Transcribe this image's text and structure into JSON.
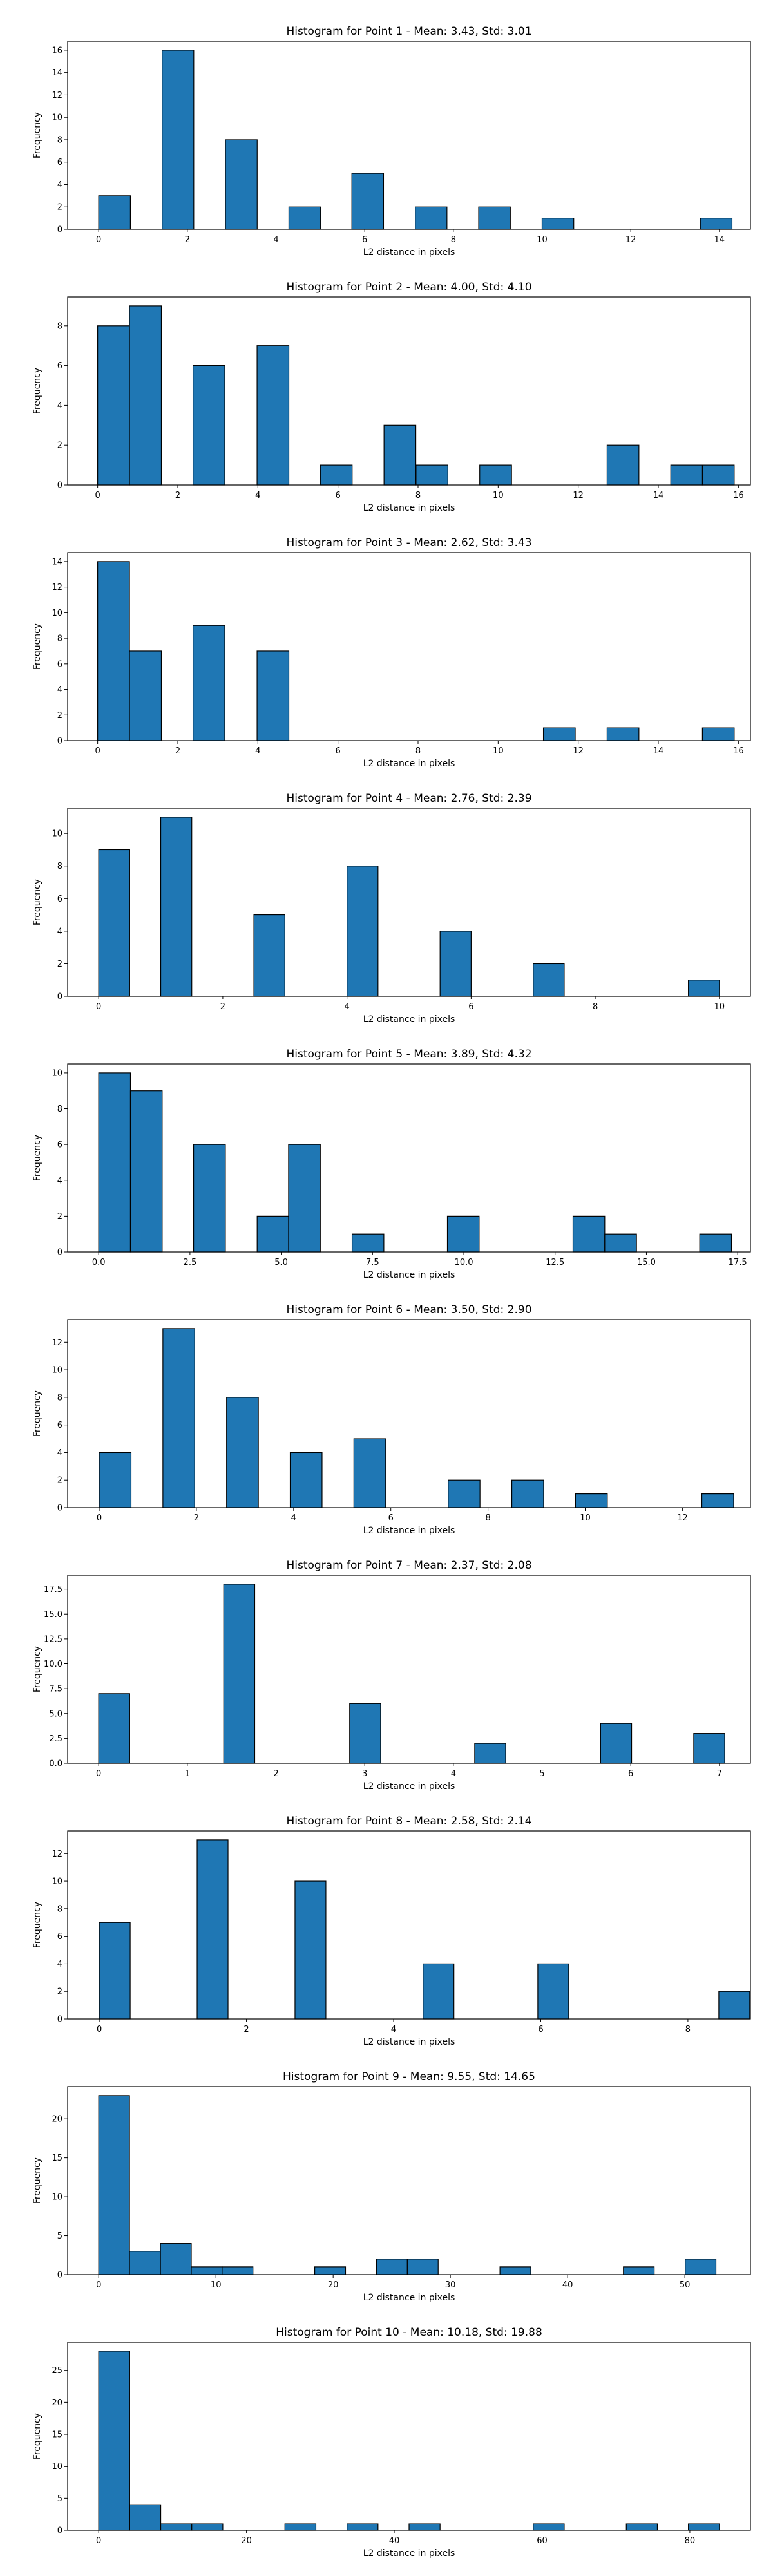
{
  "chart_data": [
    {
      "type": "bar",
      "title": "Histogram for Point 1 - Mean: 3.43, Std: 3.01",
      "xlabel": "L2 distance in pixels",
      "ylabel": "Frequency",
      "xlim": [
        -0.7,
        14.7
      ],
      "ylim": [
        0,
        16.8
      ],
      "xticks": [
        0,
        2,
        4,
        6,
        8,
        10,
        12,
        14
      ],
      "yticks": [
        0,
        2,
        4,
        6,
        8,
        10,
        12,
        14,
        16
      ],
      "bin_width": 0.715,
      "bins": [
        {
          "x": 0.0,
          "count": 3
        },
        {
          "x": 1.43,
          "count": 16
        },
        {
          "x": 2.86,
          "count": 8
        },
        {
          "x": 4.29,
          "count": 2
        },
        {
          "x": 5.71,
          "count": 5
        },
        {
          "x": 7.14,
          "count": 2
        },
        {
          "x": 8.57,
          "count": 2
        },
        {
          "x": 10.0,
          "count": 1
        },
        {
          "x": 13.57,
          "count": 1
        }
      ]
    },
    {
      "type": "bar",
      "title": "Histogram for Point 2 - Mean: 4.00, Std: 4.10",
      "xlabel": "L2 distance in pixels",
      "ylabel": "Frequency",
      "xlim": [
        -0.75,
        16.3
      ],
      "ylim": [
        0,
        9.45
      ],
      "xticks": [
        0,
        2,
        4,
        6,
        8,
        10,
        12,
        14,
        16
      ],
      "yticks": [
        0,
        2,
        4,
        6,
        8
      ],
      "bin_width": 0.795,
      "bins": [
        {
          "x": 0.0,
          "count": 8
        },
        {
          "x": 0.795,
          "count": 9
        },
        {
          "x": 2.38,
          "count": 6
        },
        {
          "x": 3.98,
          "count": 7
        },
        {
          "x": 5.56,
          "count": 1
        },
        {
          "x": 7.15,
          "count": 3
        },
        {
          "x": 7.95,
          "count": 1
        },
        {
          "x": 9.54,
          "count": 1
        },
        {
          "x": 12.72,
          "count": 2
        },
        {
          "x": 14.31,
          "count": 1
        },
        {
          "x": 15.1,
          "count": 1
        }
      ]
    },
    {
      "type": "bar",
      "title": "Histogram for Point 3 - Mean: 2.62, Std: 3.43",
      "xlabel": "L2 distance in pixels",
      "ylabel": "Frequency",
      "xlim": [
        -0.75,
        16.3
      ],
      "ylim": [
        0,
        14.7
      ],
      "xticks": [
        0,
        2,
        4,
        6,
        8,
        10,
        12,
        14,
        16
      ],
      "yticks": [
        0,
        2,
        4,
        6,
        8,
        10,
        12,
        14
      ],
      "bin_width": 0.795,
      "bins": [
        {
          "x": 0.0,
          "count": 14
        },
        {
          "x": 0.795,
          "count": 7
        },
        {
          "x": 2.38,
          "count": 9
        },
        {
          "x": 3.98,
          "count": 7
        },
        {
          "x": 11.13,
          "count": 1
        },
        {
          "x": 12.72,
          "count": 1
        },
        {
          "x": 15.1,
          "count": 1
        }
      ]
    },
    {
      "type": "bar",
      "title": "Histogram for Point 4 - Mean: 2.76, Std: 2.39",
      "xlabel": "L2 distance in pixels",
      "ylabel": "Frequency",
      "xlim": [
        -0.5,
        10.5
      ],
      "ylim": [
        0,
        11.55
      ],
      "xticks": [
        0,
        2,
        4,
        6,
        8,
        10
      ],
      "yticks": [
        0,
        2,
        4,
        6,
        8,
        10
      ],
      "bin_width": 0.5,
      "bins": [
        {
          "x": 0.0,
          "count": 9
        },
        {
          "x": 1.0,
          "count": 11
        },
        {
          "x": 2.5,
          "count": 5
        },
        {
          "x": 4.0,
          "count": 8
        },
        {
          "x": 5.5,
          "count": 4
        },
        {
          "x": 7.0,
          "count": 2
        },
        {
          "x": 9.5,
          "count": 1
        }
      ]
    },
    {
      "type": "bar",
      "title": "Histogram for Point 5 - Mean: 3.89, Std: 4.32",
      "xlabel": "L2 distance in pixels",
      "ylabel": "Frequency",
      "xlim": [
        -0.85,
        17.85
      ],
      "ylim": [
        0,
        10.5
      ],
      "xticks": [
        0.0,
        2.5,
        5.0,
        7.5,
        10.0,
        12.5,
        15.0,
        17.5
      ],
      "yticks": [
        0,
        2,
        4,
        6,
        8,
        10
      ],
      "xtick_labels": [
        "0.0",
        "2.5",
        "5.0",
        "7.5",
        "10.0",
        "12.5",
        "15.0",
        "17.5"
      ],
      "bin_width": 0.87,
      "bins": [
        {
          "x": 0.0,
          "count": 10
        },
        {
          "x": 0.87,
          "count": 9
        },
        {
          "x": 2.6,
          "count": 6
        },
        {
          "x": 4.34,
          "count": 2
        },
        {
          "x": 5.2,
          "count": 6
        },
        {
          "x": 6.94,
          "count": 1
        },
        {
          "x": 9.55,
          "count": 2
        },
        {
          "x": 12.99,
          "count": 2
        },
        {
          "x": 13.86,
          "count": 1
        },
        {
          "x": 16.46,
          "count": 1
        }
      ]
    },
    {
      "type": "bar",
      "title": "Histogram for Point 6 - Mean: 3.50, Std: 2.90",
      "xlabel": "L2 distance in pixels",
      "ylabel": "Frequency",
      "xlim": [
        -0.65,
        13.4
      ],
      "ylim": [
        0,
        13.65
      ],
      "xticks": [
        0,
        2,
        4,
        6,
        8,
        10,
        12
      ],
      "yticks": [
        0,
        2,
        4,
        6,
        8,
        10,
        12
      ],
      "bin_width": 0.655,
      "bins": [
        {
          "x": 0.0,
          "count": 4
        },
        {
          "x": 1.31,
          "count": 13
        },
        {
          "x": 2.62,
          "count": 8
        },
        {
          "x": 3.93,
          "count": 4
        },
        {
          "x": 5.24,
          "count": 5
        },
        {
          "x": 7.18,
          "count": 2
        },
        {
          "x": 8.49,
          "count": 2
        },
        {
          "x": 9.8,
          "count": 1
        },
        {
          "x": 12.4,
          "count": 1
        }
      ]
    },
    {
      "type": "bar",
      "title": "Histogram for Point 7 - Mean: 2.37, Std: 2.08",
      "xlabel": "L2 distance in pixels",
      "ylabel": "Frequency",
      "xlim": [
        -0.35,
        7.35
      ],
      "ylim": [
        0,
        18.9
      ],
      "xticks": [
        0,
        1,
        2,
        3,
        4,
        5,
        6,
        7
      ],
      "yticks": [
        0.0,
        2.5,
        5.0,
        7.5,
        10.0,
        12.5,
        15.0,
        17.5
      ],
      "ytick_labels": [
        "0.0",
        "2.5",
        "5.0",
        "7.5",
        "10.0",
        "12.5",
        "15.0",
        "17.5"
      ],
      "bin_width": 0.35,
      "bins": [
        {
          "x": 0.0,
          "count": 7
        },
        {
          "x": 1.41,
          "count": 18
        },
        {
          "x": 2.83,
          "count": 6
        },
        {
          "x": 4.24,
          "count": 2
        },
        {
          "x": 5.66,
          "count": 4
        },
        {
          "x": 6.71,
          "count": 3
        }
      ]
    },
    {
      "type": "bar",
      "title": "Histogram for Point 8 - Mean: 2.58, Std: 2.14",
      "xlabel": "L2 distance in pixels",
      "ylabel": "Frequency",
      "xlim": [
        -0.43,
        8.85
      ],
      "ylim": [
        0,
        13.65
      ],
      "xticks": [
        0,
        2,
        4,
        6,
        8
      ],
      "yticks": [
        0,
        2,
        4,
        6,
        8,
        10,
        12
      ],
      "bin_width": 0.42,
      "bins": [
        {
          "x": 0.0,
          "count": 7
        },
        {
          "x": 1.33,
          "count": 13
        },
        {
          "x": 2.66,
          "count": 10
        },
        {
          "x": 4.4,
          "count": 4
        },
        {
          "x": 5.96,
          "count": 4
        },
        {
          "x": 8.42,
          "count": 2
        }
      ]
    },
    {
      "type": "bar",
      "title": "Histogram for Point 9 - Mean: 9.55, Std: 14.65",
      "xlabel": "L2 distance in pixels",
      "ylabel": "Frequency",
      "xlim": [
        -2.65,
        55.6
      ],
      "ylim": [
        0,
        24.15
      ],
      "xticks": [
        0,
        10,
        20,
        30,
        40,
        50
      ],
      "yticks": [
        0,
        5,
        10,
        15,
        20
      ],
      "bin_width": 2.63,
      "bins": [
        {
          "x": 0.0,
          "count": 23
        },
        {
          "x": 2.63,
          "count": 3
        },
        {
          "x": 5.27,
          "count": 4
        },
        {
          "x": 7.9,
          "count": 1
        },
        {
          "x": 10.53,
          "count": 1
        },
        {
          "x": 18.43,
          "count": 1
        },
        {
          "x": 23.7,
          "count": 2
        },
        {
          "x": 26.33,
          "count": 2
        },
        {
          "x": 34.23,
          "count": 1
        },
        {
          "x": 44.76,
          "count": 1
        },
        {
          "x": 50.03,
          "count": 2
        }
      ]
    },
    {
      "type": "bar",
      "title": "Histogram for Point 10 - Mean: 10.18, Std: 19.88",
      "xlabel": "L2 distance in pixels",
      "ylabel": "Frequency",
      "xlim": [
        -4.2,
        88.2
      ],
      "ylim": [
        0,
        29.4
      ],
      "xticks": [
        0,
        20,
        40,
        60,
        80
      ],
      "yticks": [
        0,
        5,
        10,
        15,
        20,
        25
      ],
      "bin_width": 4.2,
      "bins": [
        {
          "x": 0.0,
          "count": 28
        },
        {
          "x": 4.2,
          "count": 4
        },
        {
          "x": 8.4,
          "count": 1
        },
        {
          "x": 12.6,
          "count": 1
        },
        {
          "x": 25.2,
          "count": 1
        },
        {
          "x": 33.6,
          "count": 1
        },
        {
          "x": 42.0,
          "count": 1
        },
        {
          "x": 58.8,
          "count": 1
        },
        {
          "x": 71.4,
          "count": 1
        },
        {
          "x": 79.8,
          "count": 1
        }
      ]
    }
  ]
}
